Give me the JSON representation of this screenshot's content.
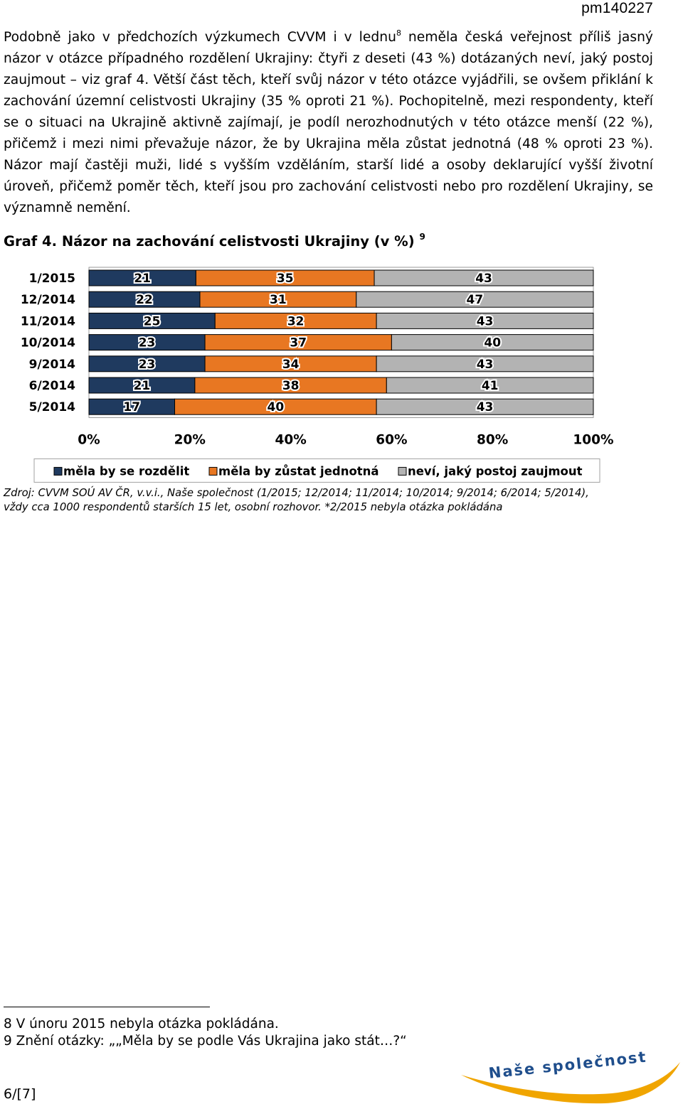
{
  "header": {
    "doc_code": "pm140227"
  },
  "paragraph": {
    "part1": "Podobně jako v předchozích výzkumech CVVM i v lednu",
    "fn_ref": "8",
    "part2": " neměla česká veřejnost příliš jasný názor v otázce případného rozdělení Ukrajiny: čtyři z deseti (43 %) dotázaných neví, jaký postoj zaujmout – viz graf 4. Větší část těch, kteří svůj názor v této otázce vyjádřili, se ovšem přiklání k zachování územní celistvosti Ukrajiny (35 % oproti 21 %). Pochopitelně, mezi respondenty, kteří se o situaci na Ukrajině aktivně zajímají, je podíl nerozhodnutých v této otázce menší (22 %), přičemž i mezi nimi převažuje názor, že by Ukrajina měla zůstat jednotná (48 % oproti 23 %). Názor mají častěji muži, lidé s vyšším vzděláním, starší lidé a osoby deklarující vyšší životní úroveň, přičemž poměr těch, kteří jsou pro zachování celistvosti nebo pro rozdělení Ukrajiny, se významně nemění."
  },
  "graf": {
    "title": "Graf 4. Názor na zachování celistvosti Ukrajiny (v %)",
    "title_fn": "9"
  },
  "chart_data": {
    "type": "bar",
    "orientation": "horizontal",
    "stacked": "percent",
    "title": "Graf 4. Názor na zachování celistvosti Ukrajiny (v %)",
    "categories": [
      "1/2015",
      "12/2014",
      "11/2014",
      "10/2014",
      "9/2014",
      "6/2014",
      "5/2014"
    ],
    "series": [
      {
        "name": "měla by se rozdělit",
        "color": "#1f3a5f",
        "values": [
          21,
          22,
          25,
          23,
          23,
          21,
          17
        ]
      },
      {
        "name": "měla by zůstat jednotná",
        "color": "#e87722",
        "values": [
          35,
          31,
          32,
          37,
          34,
          38,
          40
        ]
      },
      {
        "name": "neví, jaký postoj zaujmout",
        "color": "#b3b3b3",
        "values": [
          43,
          47,
          43,
          40,
          43,
          41,
          43
        ]
      }
    ],
    "x_ticks": [
      "0%",
      "20%",
      "40%",
      "60%",
      "80%",
      "100%"
    ],
    "xlim": [
      0,
      100
    ],
    "grid": false,
    "legend_position": "bottom"
  },
  "source": {
    "line1": "Zdroj: CVVM SOÚ AV ČR, v.v.i., Naše společnost (1/2015; 12/2014; 11/2014; 10/2014; 9/2014; 6/2014; 5/2014),",
    "line2": "vždy cca 1000 respondentů starších 15 let, osobní rozhovor. *2/2015 nebyla otázka pokládána"
  },
  "footnotes": [
    "8 V únoru 2015 nebyla otázka pokládána.",
    "9 Znění otázky: „„Měla by se podle Vás Ukrajina jako stát…?“"
  ],
  "page_number": "6/[7]",
  "logo": {
    "text": "Naše společnost",
    "colors": [
      "#1f4e8c",
      "#f0a500"
    ]
  }
}
